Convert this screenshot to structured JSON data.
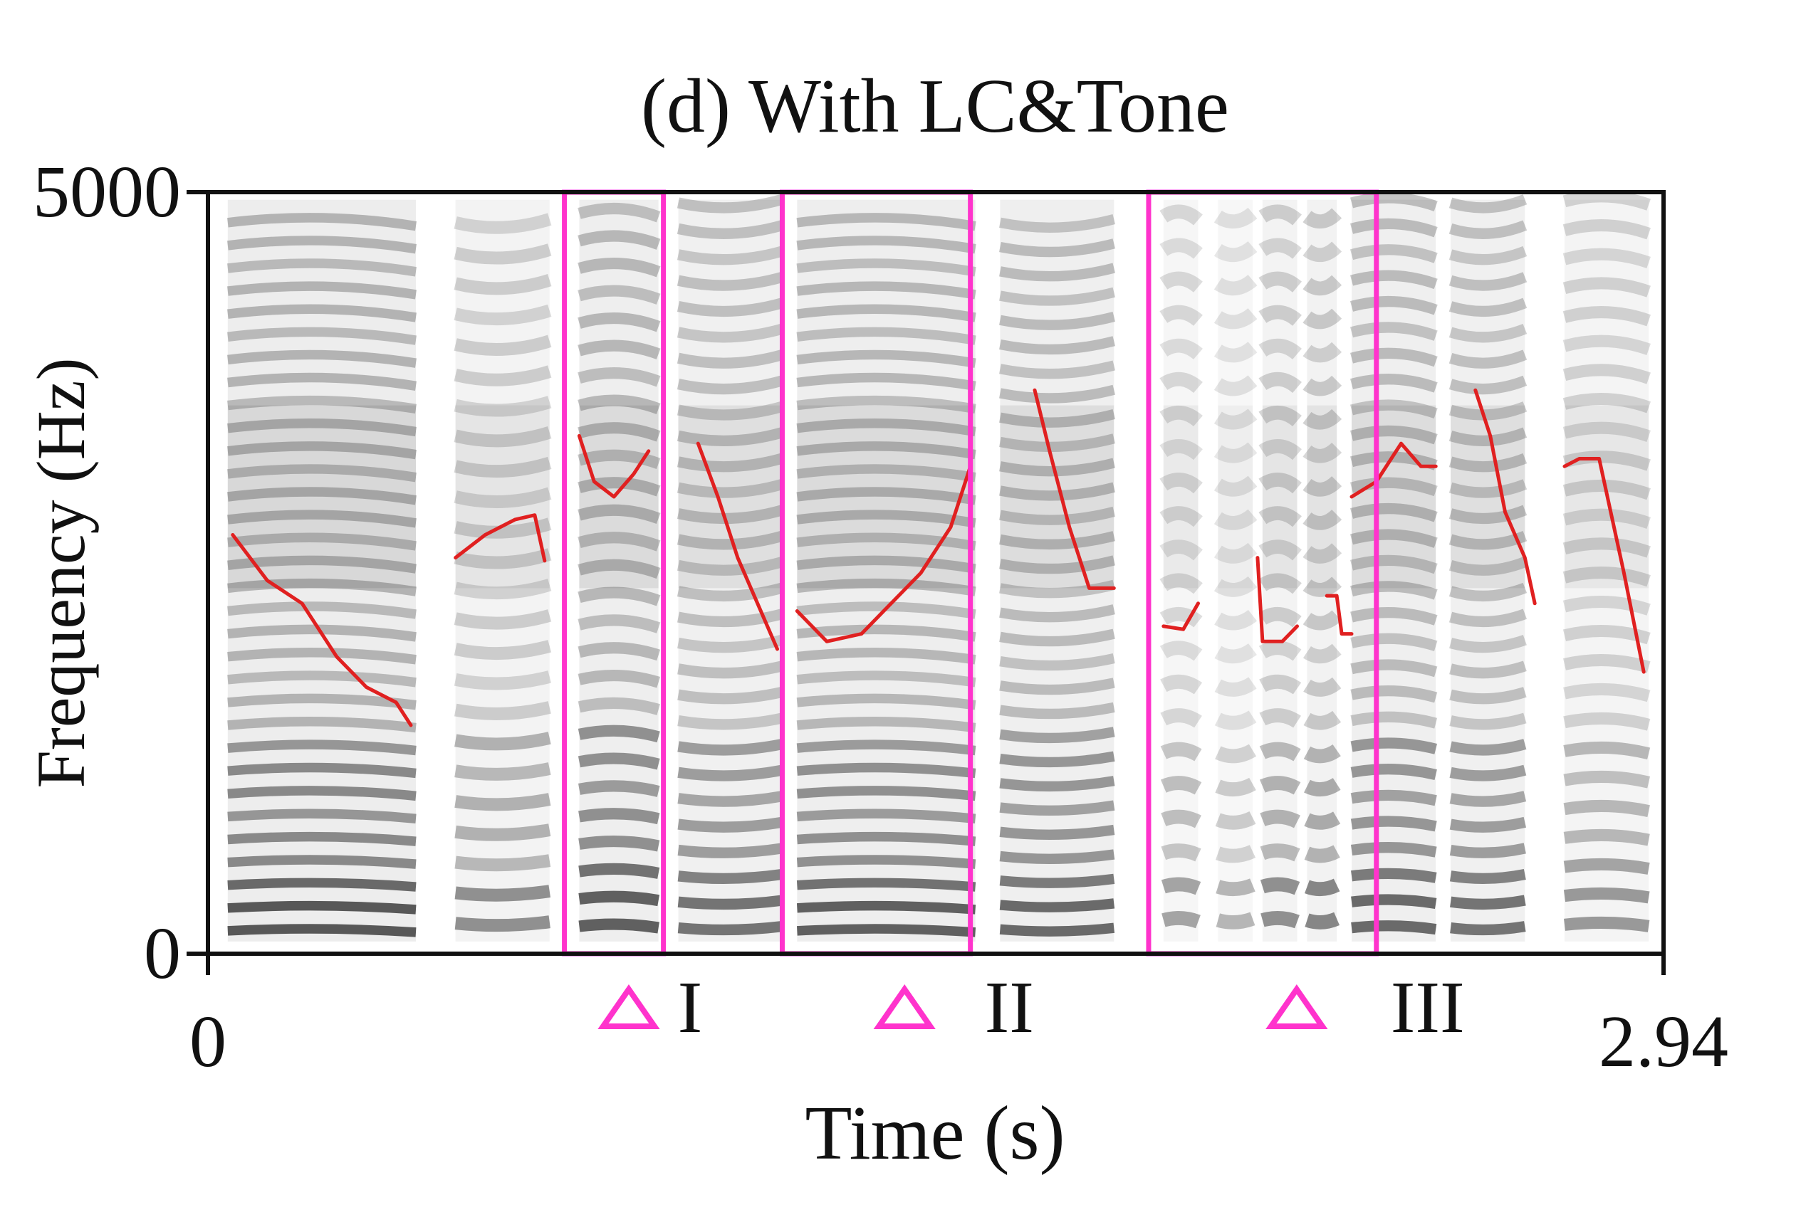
{
  "chart_data": {
    "type": "spectrogram",
    "title": "(d) With LC&Tone",
    "xlabel": "Time (s)",
    "ylabel": "Frequency (Hz)",
    "xlim": [
      0,
      2.94
    ],
    "ylim": [
      0,
      5000
    ],
    "x_ticks": [
      "0",
      "2.94"
    ],
    "y_ticks": [
      "0",
      "5000"
    ],
    "colors": {
      "pitch": "#e02020",
      "highlight": "#ff33cc",
      "spectrogram": "#2a2a2a",
      "axis": "#111111"
    },
    "syllables": [
      {
        "start": 0.04,
        "end": 0.42,
        "intensity": 0.85,
        "harmonic_spacing": 150
      },
      {
        "start": 0.5,
        "end": 0.69,
        "intensity": 0.55,
        "harmonic_spacing": 200
      },
      {
        "start": 0.75,
        "end": 0.91,
        "intensity": 0.8,
        "harmonic_spacing": 180
      },
      {
        "start": 0.95,
        "end": 1.16,
        "intensity": 0.7,
        "harmonic_spacing": 170
      },
      {
        "start": 1.19,
        "end": 1.55,
        "intensity": 0.8,
        "harmonic_spacing": 150
      },
      {
        "start": 1.6,
        "end": 1.83,
        "intensity": 0.75,
        "harmonic_spacing": 160
      },
      {
        "start": 1.93,
        "end": 2.0,
        "intensity": 0.45,
        "harmonic_spacing": 220
      },
      {
        "start": 2.04,
        "end": 2.11,
        "intensity": 0.35,
        "harmonic_spacing": 220
      },
      {
        "start": 2.13,
        "end": 2.2,
        "intensity": 0.55,
        "harmonic_spacing": 220
      },
      {
        "start": 2.22,
        "end": 2.28,
        "intensity": 0.6,
        "harmonic_spacing": 220
      },
      {
        "start": 2.31,
        "end": 2.48,
        "intensity": 0.75,
        "harmonic_spacing": 170
      },
      {
        "start": 2.51,
        "end": 2.66,
        "intensity": 0.7,
        "harmonic_spacing": 170
      },
      {
        "start": 2.74,
        "end": 2.91,
        "intensity": 0.5,
        "harmonic_spacing": 190
      }
    ],
    "pitch_contours": [
      {
        "points": [
          [
            0.05,
            2750
          ],
          [
            0.12,
            2450
          ],
          [
            0.19,
            2300
          ],
          [
            0.26,
            1950
          ],
          [
            0.32,
            1750
          ],
          [
            0.38,
            1650
          ],
          [
            0.41,
            1500
          ]
        ]
      },
      {
        "points": [
          [
            0.5,
            2600
          ],
          [
            0.56,
            2750
          ],
          [
            0.62,
            2850
          ],
          [
            0.66,
            2880
          ],
          [
            0.68,
            2580
          ]
        ]
      },
      {
        "points": [
          [
            0.75,
            3400
          ],
          [
            0.78,
            3100
          ],
          [
            0.82,
            3000
          ],
          [
            0.86,
            3150
          ],
          [
            0.89,
            3300
          ]
        ]
      },
      {
        "points": [
          [
            0.99,
            3350
          ],
          [
            1.03,
            3000
          ],
          [
            1.07,
            2600
          ],
          [
            1.11,
            2300
          ],
          [
            1.15,
            2000
          ]
        ]
      },
      {
        "points": [
          [
            1.19,
            2250
          ],
          [
            1.25,
            2050
          ],
          [
            1.32,
            2100
          ],
          [
            1.38,
            2300
          ],
          [
            1.44,
            2500
          ],
          [
            1.5,
            2800
          ],
          [
            1.54,
            3200
          ]
        ]
      },
      {
        "points": [
          [
            1.67,
            3700
          ],
          [
            1.7,
            3300
          ],
          [
            1.74,
            2800
          ],
          [
            1.78,
            2400
          ],
          [
            1.83,
            2400
          ]
        ]
      },
      {
        "points": [
          [
            1.93,
            2150
          ],
          [
            1.97,
            2130
          ],
          [
            2.0,
            2300
          ]
        ]
      },
      {
        "points": [
          [
            2.12,
            2600
          ],
          [
            2.13,
            2050
          ],
          [
            2.17,
            2050
          ],
          [
            2.2,
            2150
          ]
        ]
      },
      {
        "points": [
          [
            2.26,
            2350
          ],
          [
            2.28,
            2350
          ],
          [
            2.29,
            2100
          ],
          [
            2.31,
            2100
          ]
        ]
      },
      {
        "points": [
          [
            2.31,
            3000
          ],
          [
            2.36,
            3100
          ],
          [
            2.41,
            3350
          ],
          [
            2.45,
            3200
          ],
          [
            2.48,
            3200
          ]
        ]
      },
      {
        "points": [
          [
            2.56,
            3700
          ],
          [
            2.59,
            3400
          ],
          [
            2.62,
            2900
          ],
          [
            2.66,
            2600
          ],
          [
            2.68,
            2300
          ]
        ]
      },
      {
        "points": [
          [
            2.74,
            3200
          ],
          [
            2.77,
            3250
          ],
          [
            2.81,
            3250
          ],
          [
            2.83,
            2950
          ],
          [
            2.86,
            2500
          ],
          [
            2.9,
            1850
          ]
        ]
      }
    ],
    "highlight_boxes": [
      {
        "label": "I",
        "start": 0.72,
        "end": 0.92,
        "fmin": 0,
        "fmax": 5000
      },
      {
        "label": "II",
        "start": 1.16,
        "end": 1.54,
        "fmin": 0,
        "fmax": 5000
      },
      {
        "label": "III",
        "start": 1.9,
        "end": 2.36,
        "fmin": 0,
        "fmax": 5000
      }
    ]
  }
}
